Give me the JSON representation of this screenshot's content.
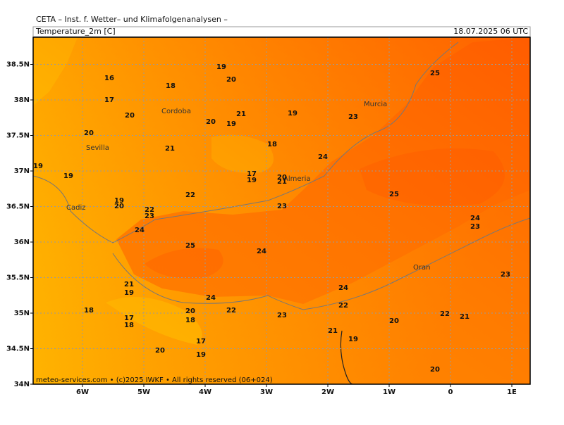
{
  "header": {
    "title": "CETA – Inst. f. Wetter– und Klimafolgenanalysen –",
    "variable": "Temperature_2m [C]",
    "valid_time": "18.07.2025 06 UTC"
  },
  "footer": "meteo-services.com • (c)2025 IWKF • All rights reserved (06+024)",
  "axes": {
    "lon_ticks": [
      {
        "value": -6,
        "label": "6W"
      },
      {
        "value": -5,
        "label": "5W"
      },
      {
        "value": -4,
        "label": "4W"
      },
      {
        "value": -3,
        "label": "3W"
      },
      {
        "value": -2,
        "label": "2W"
      },
      {
        "value": -1,
        "label": "1W"
      },
      {
        "value": 0,
        "label": "0"
      },
      {
        "value": 1,
        "label": "1E"
      }
    ],
    "lat_ticks": [
      {
        "value": 38.5,
        "label": "38.5N"
      },
      {
        "value": 38,
        "label": "38N"
      },
      {
        "value": 37.5,
        "label": "37.5N"
      },
      {
        "value": 37,
        "label": "37N"
      },
      {
        "value": 36.5,
        "label": "36.5N"
      },
      {
        "value": 36,
        "label": "36N"
      },
      {
        "value": 35.5,
        "label": "35.5N"
      },
      {
        "value": 35,
        "label": "35N"
      },
      {
        "value": 34.5,
        "label": "34.5N"
      },
      {
        "value": 34,
        "label": "34N"
      }
    ]
  },
  "cities": [
    "Cordoba",
    "Murcia",
    "Sevilla",
    "Almeria",
    "Cadiz",
    "Oran"
  ],
  "contour_labels": [
    "16",
    "18",
    "19",
    "20",
    "17",
    "20",
    "21",
    "19",
    "20",
    "19",
    "20",
    "18",
    "21",
    "23",
    "24",
    "19",
    "19",
    "17",
    "19",
    "20",
    "21",
    "22",
    "25",
    "19",
    "20",
    "22",
    "23",
    "23",
    "24",
    "24",
    "23",
    "25",
    "24",
    "23",
    "21",
    "19",
    "24",
    "24",
    "18",
    "20",
    "22",
    "22",
    "23",
    "22",
    "21",
    "17",
    "18",
    "18",
    "20",
    "21",
    "19",
    "17",
    "20",
    "19",
    "20",
    "25"
  ]
}
